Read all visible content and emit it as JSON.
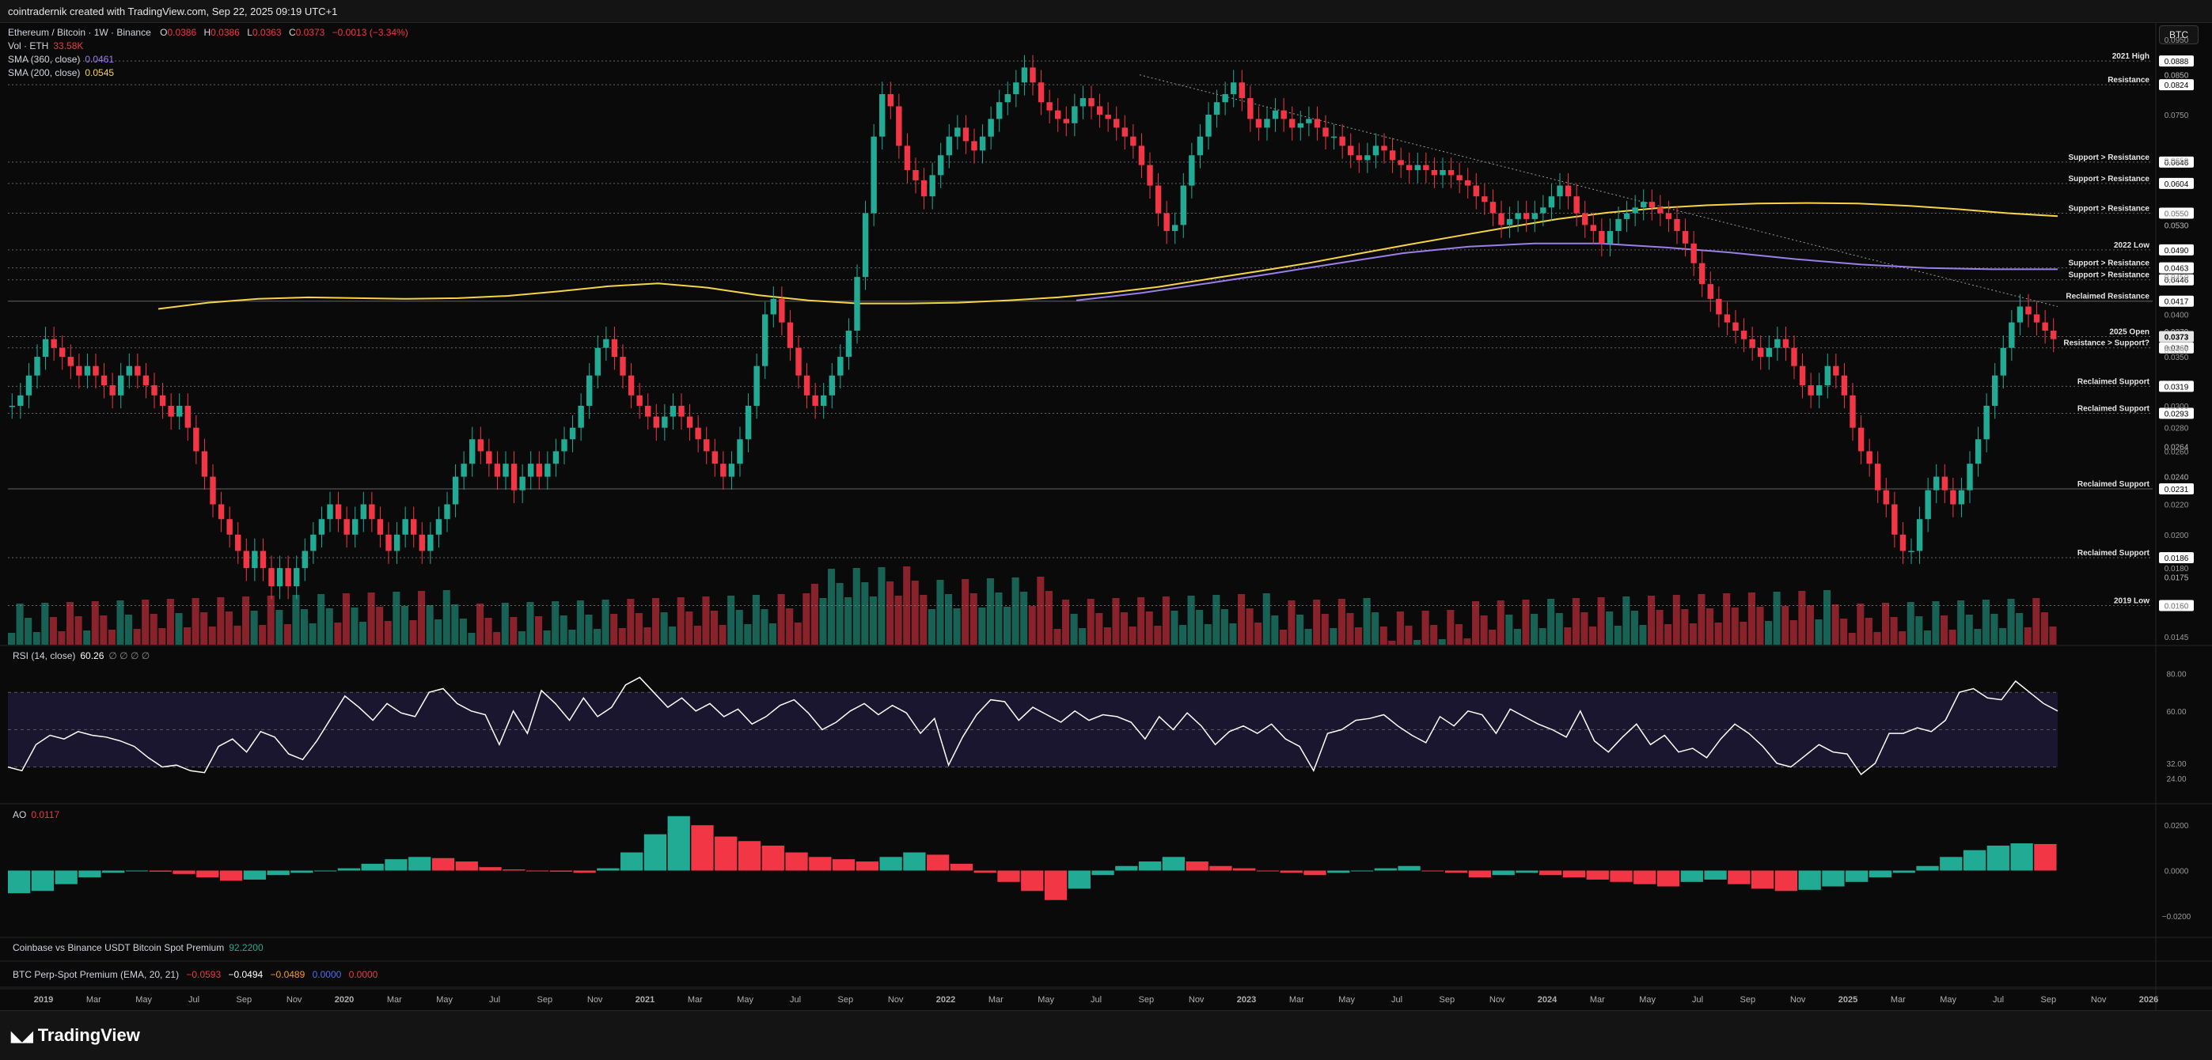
{
  "header": {
    "caption": "cointradernik created with TradingView.com, Sep 22, 2025 09:19 UTC+1"
  },
  "symbol": {
    "title": "Ethereum / Bitcoin · 1W · Binance",
    "O": "0.0386",
    "H": "0.0386",
    "L": "0.0363",
    "C": "0.0373",
    "change": "−0.0013 (−3.34%)",
    "vol_label": "Vol · ETH",
    "vol_value": "33.58K",
    "sma360_label": "SMA (360, close)",
    "sma360_value": "0.0461",
    "sma200_label": "SMA (200, close)",
    "sma200_value": "0.0545"
  },
  "currency_button": "BTC",
  "colors": {
    "up": "#22ab94",
    "down": "#f23645",
    "sma200": "#f5d547",
    "sma360": "#9b7fe8",
    "rsi": "#ffffff",
    "band": "#1a1630"
  },
  "rsi": {
    "label": "RSI (14, close)",
    "value": "60.26",
    "extras": "∅ ∅ ∅ ∅"
  },
  "ao": {
    "label": "AO",
    "value": "0.0117"
  },
  "premium": {
    "label": "Coinbase vs Binance USDT Bitcoin Spot Premium",
    "value": "92.2200"
  },
  "perp": {
    "label": "BTC Perp-Spot Premium (EMA, 20, 21)",
    "v1": "−0.0593",
    "v2": "−0.0494",
    "v3": "−0.0489",
    "v4": "0.0000",
    "v5": "0.0000"
  },
  "footer": {
    "brand": "TradingView"
  },
  "chart_data": {
    "type": "candlestick",
    "timeframe": "1W",
    "y_scale": "log",
    "ylim": [
      0.0145,
      0.095
    ],
    "price_ticks": [
      "0.0950",
      "0.0850",
      "0.0750",
      "0.0650",
      "0.0604",
      "0.0550",
      "0.0530",
      "0.0490",
      "0.0463",
      "0.0446",
      "0.0417",
      "0.0379",
      "0.0373",
      "0.0360",
      "0.0357",
      "0.0319",
      "0.0293",
      "0.0264",
      "0.0240",
      "0.0231",
      "0.0220",
      "0.0200",
      "0.0186",
      "0.0175",
      "0.0160",
      "0.0145"
    ],
    "axis_price_labels": [
      "0.0950",
      "0.0850",
      "0.0750",
      "0.0650",
      "0.0550",
      "0.0450",
      "0.0400",
      "0.0350",
      "0.0300",
      "0.0280",
      "0.0260",
      "0.0240",
      "0.0220",
      "0.0200",
      "0.0180",
      "0.0160",
      "0.0145"
    ],
    "time_labels": [
      "2019",
      "Mar",
      "May",
      "Jul",
      "Sep",
      "Nov",
      "2020",
      "Mar",
      "May",
      "Jul",
      "Sep",
      "Nov",
      "2021",
      "Mar",
      "May",
      "Jul",
      "Sep",
      "Nov",
      "2022",
      "Mar",
      "May",
      "Jul",
      "Sep",
      "Nov",
      "2023",
      "Mar",
      "May",
      "Jul",
      "Sep",
      "Nov",
      "2024",
      "Mar",
      "May",
      "Jul",
      "Sep",
      "Nov",
      "2025",
      "Mar",
      "May",
      "Jul",
      "Sep",
      "Nov",
      "2026"
    ],
    "levels": [
      {
        "label": "2021 High",
        "price": "0.0888",
        "style": "dotted"
      },
      {
        "label": "Resistance",
        "price": "0.0824",
        "style": "dotted"
      },
      {
        "label": "Support > Resistance",
        "price": "0.0646",
        "style": "dotted"
      },
      {
        "label": "Support > Resistance",
        "price": "0.0604",
        "style": "dotted"
      },
      {
        "label": "Support > Resistance",
        "price": "0.0550",
        "style": "dotted"
      },
      {
        "label": "2022 Low",
        "price": "0.0490",
        "style": "dotted"
      },
      {
        "label": "Support > Resistance",
        "price": "0.0463",
        "style": "dotted"
      },
      {
        "label": "Support > Resistance",
        "price": "0.0446",
        "style": "dotted"
      },
      {
        "label": "Reclaimed Resistance",
        "price": "0.0417",
        "style": "solid"
      },
      {
        "label": "2025 Open",
        "price": "0.0373",
        "style": "dotted"
      },
      {
        "label": "Resistance > Support?",
        "price": "0.0360",
        "style": "dotted"
      },
      {
        "label": "Reclaimed Support",
        "price": "0.0319",
        "style": "dotted"
      },
      {
        "label": "Reclaimed Support",
        "price": "0.0293",
        "style": "dotted"
      },
      {
        "label": "Reclaimed Support",
        "price": "0.0231",
        "style": "solid"
      },
      {
        "label": "Reclaimed Support",
        "price": "0.0186",
        "style": "dotted"
      },
      {
        "label": "2019 Low",
        "price": "0.0160",
        "style": "dotted"
      }
    ],
    "extra_price_tags": [
      "0.0850",
      "0.0530",
      "0.0379",
      "0.0357",
      "0.0264",
      "0.0240",
      "0.0175"
    ],
    "last_price": "0.0373",
    "countdown": "6d 16h",
    "close_series": [
      0.03,
      0.031,
      0.033,
      0.035,
      0.037,
      0.036,
      0.035,
      0.034,
      0.033,
      0.034,
      0.033,
      0.032,
      0.031,
      0.033,
      0.034,
      0.033,
      0.032,
      0.031,
      0.03,
      0.029,
      0.03,
      0.028,
      0.026,
      0.024,
      0.022,
      0.021,
      0.02,
      0.019,
      0.018,
      0.019,
      0.018,
      0.017,
      0.018,
      0.017,
      0.018,
      0.019,
      0.02,
      0.021,
      0.022,
      0.021,
      0.02,
      0.021,
      0.022,
      0.021,
      0.02,
      0.019,
      0.02,
      0.021,
      0.02,
      0.019,
      0.02,
      0.021,
      0.022,
      0.024,
      0.025,
      0.027,
      0.026,
      0.025,
      0.024,
      0.025,
      0.023,
      0.024,
      0.025,
      0.024,
      0.025,
      0.026,
      0.027,
      0.028,
      0.03,
      0.033,
      0.036,
      0.037,
      0.035,
      0.033,
      0.031,
      0.03,
      0.029,
      0.028,
      0.029,
      0.03,
      0.029,
      0.028,
      0.027,
      0.026,
      0.025,
      0.024,
      0.025,
      0.027,
      0.03,
      0.034,
      0.04,
      0.042,
      0.039,
      0.036,
      0.033,
      0.031,
      0.03,
      0.031,
      0.033,
      0.035,
      0.038,
      0.045,
      0.055,
      0.07,
      0.08,
      0.077,
      0.068,
      0.063,
      0.061,
      0.058,
      0.062,
      0.066,
      0.07,
      0.072,
      0.069,
      0.067,
      0.07,
      0.074,
      0.078,
      0.08,
      0.083,
      0.087,
      0.083,
      0.078,
      0.076,
      0.074,
      0.073,
      0.077,
      0.079,
      0.077,
      0.075,
      0.074,
      0.072,
      0.07,
      0.068,
      0.064,
      0.06,
      0.055,
      0.052,
      0.053,
      0.06,
      0.066,
      0.07,
      0.075,
      0.078,
      0.08,
      0.083,
      0.079,
      0.074,
      0.072,
      0.074,
      0.076,
      0.074,
      0.072,
      0.073,
      0.074,
      0.072,
      0.07,
      0.07,
      0.068,
      0.066,
      0.065,
      0.066,
      0.068,
      0.067,
      0.065,
      0.064,
      0.063,
      0.064,
      0.063,
      0.062,
      0.063,
      0.062,
      0.061,
      0.06,
      0.058,
      0.057,
      0.055,
      0.053,
      0.054,
      0.055,
      0.054,
      0.055,
      0.056,
      0.058,
      0.06,
      0.058,
      0.055,
      0.053,
      0.052,
      0.05,
      0.052,
      0.054,
      0.055,
      0.056,
      0.057,
      0.056,
      0.055,
      0.054,
      0.052,
      0.05,
      0.047,
      0.044,
      0.042,
      0.04,
      0.039,
      0.038,
      0.037,
      0.036,
      0.035,
      0.036,
      0.037,
      0.036,
      0.034,
      0.032,
      0.031,
      0.032,
      0.034,
      0.033,
      0.031,
      0.028,
      0.026,
      0.025,
      0.023,
      0.022,
      0.02,
      0.019,
      0.019,
      0.021,
      0.023,
      0.024,
      0.023,
      0.022,
      0.023,
      0.025,
      0.027,
      0.03,
      0.033,
      0.036,
      0.039,
      0.041,
      0.04,
      0.039,
      0.038,
      0.037
    ],
    "sma200_series": [
      0.0407,
      0.0415,
      0.042,
      0.0422,
      0.0421,
      0.042,
      0.0421,
      0.0424,
      0.043,
      0.0437,
      0.0441,
      0.0435,
      0.0425,
      0.0418,
      0.0414,
      0.0414,
      0.0415,
      0.0418,
      0.0422,
      0.0428,
      0.0436,
      0.0447,
      0.0458,
      0.047,
      0.0484,
      0.0498,
      0.0512,
      0.0526,
      0.054,
      0.0551,
      0.0559,
      0.0564,
      0.0567,
      0.0568,
      0.0567,
      0.0563,
      0.0557,
      0.055,
      0.0545
    ],
    "sma360_series": [
      0.0418,
      0.0428,
      0.0441,
      0.0455,
      0.047,
      0.0485,
      0.0495,
      0.05,
      0.05,
      0.0494,
      0.0486,
      0.0476,
      0.0468,
      0.0463,
      0.0461,
      0.0461
    ],
    "rsi_series": [
      30,
      28,
      42,
      47,
      45,
      49,
      47,
      46,
      44,
      41,
      35,
      30,
      31,
      28,
      27,
      41,
      45,
      38,
      49,
      46,
      37,
      34,
      44,
      56,
      68,
      62,
      55,
      64,
      59,
      57,
      70,
      72,
      64,
      60,
      58,
      42,
      60,
      48,
      71,
      64,
      55,
      67,
      57,
      62,
      74,
      78,
      70,
      62,
      67,
      60,
      64,
      57,
      61,
      53,
      57,
      63,
      66,
      59,
      50,
      54,
      60,
      64,
      58,
      63,
      59,
      48,
      56,
      31,
      46,
      58,
      66,
      65,
      55,
      62,
      58,
      54,
      60,
      55,
      58,
      57,
      54,
      45,
      57,
      50,
      59,
      52,
      42,
      49,
      52,
      48,
      53,
      45,
      41,
      28,
      48,
      50,
      55,
      56,
      58,
      52,
      47,
      43,
      57,
      52,
      60,
      58,
      48,
      61,
      57,
      53,
      50,
      46,
      60,
      44,
      38,
      46,
      53,
      42,
      47,
      38,
      40,
      35,
      45,
      53,
      48,
      41,
      32,
      30,
      36,
      42,
      38,
      37,
      26,
      32,
      48,
      48,
      51,
      49,
      55,
      70,
      72,
      67,
      66,
      76,
      70,
      64,
      60
    ],
    "ao_series": [
      -0.01,
      -0.009,
      -0.006,
      -0.003,
      -0.001,
      0.0,
      -0.0005,
      -0.0015,
      -0.003,
      -0.0045,
      -0.004,
      -0.002,
      -0.001,
      0.0,
      0.001,
      0.003,
      0.005,
      0.006,
      0.0055,
      0.004,
      0.0015,
      0.0005,
      0.0,
      -0.0005,
      -0.001,
      0.001,
      0.008,
      0.016,
      0.024,
      0.02,
      0.015,
      0.013,
      0.011,
      0.008,
      0.006,
      0.005,
      0.004,
      0.006,
      0.008,
      0.007,
      0.003,
      -0.001,
      -0.005,
      -0.009,
      -0.013,
      -0.008,
      -0.002,
      0.002,
      0.004,
      0.006,
      0.004,
      0.002,
      0.001,
      0.0,
      -0.001,
      -0.002,
      -0.001,
      0.0,
      0.001,
      0.002,
      0.0,
      -0.001,
      -0.003,
      -0.002,
      -0.001,
      -0.002,
      -0.003,
      -0.004,
      -0.005,
      -0.006,
      -0.007,
      -0.005,
      -0.004,
      -0.006,
      -0.008,
      -0.009,
      -0.0085,
      -0.007,
      -0.005,
      -0.003,
      -0.001,
      0.002,
      0.006,
      0.009,
      0.011,
      0.012,
      0.0117
    ],
    "rsi_levels": [
      "80.00",
      "60.00",
      "32.00",
      "24.00"
    ],
    "ao_levels": [
      "0.0200",
      "0.0000",
      "−0.0200"
    ]
  }
}
